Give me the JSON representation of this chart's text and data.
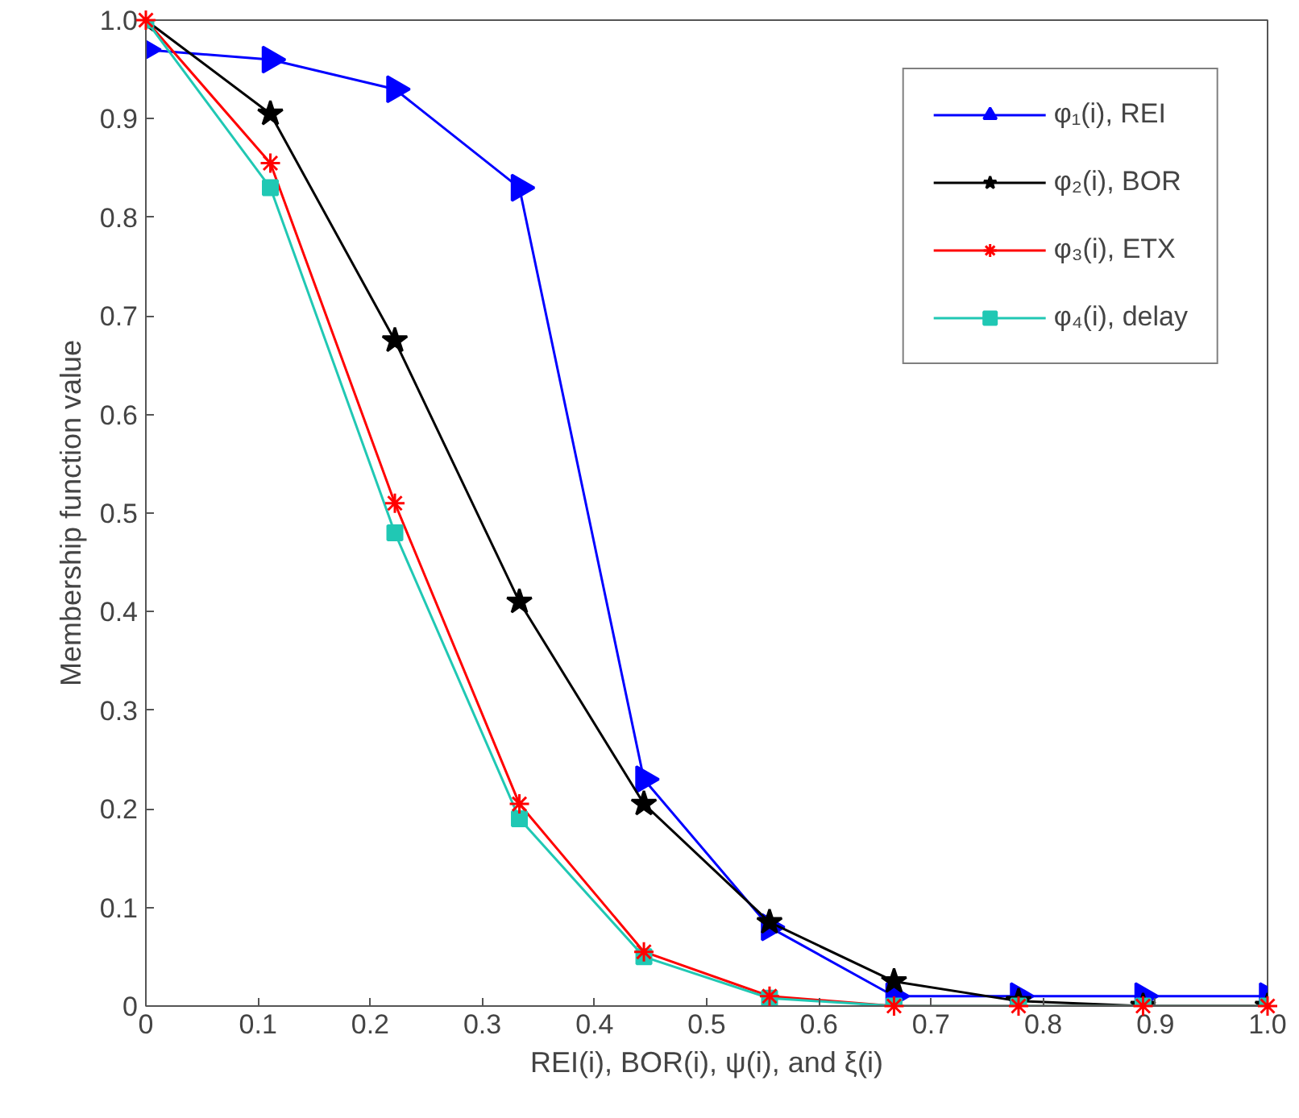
{
  "chart_data": {
    "type": "line",
    "xlabel": "REI(i), BOR(i), ψ(i), and ξ(i)",
    "ylabel": "Membership function value",
    "x": [
      0,
      0.111,
      0.222,
      0.333,
      0.444,
      0.556,
      0.667,
      0.778,
      0.889,
      1.0
    ],
    "series": [
      {
        "name": "φ₁(i), REI",
        "color": "#0000ff",
        "marker": "triangle",
        "values": [
          0.97,
          0.96,
          0.93,
          0.83,
          0.23,
          0.08,
          0.01,
          0.01,
          0.01,
          0.01
        ]
      },
      {
        "name": "φ₂(i), BOR",
        "color": "#000000",
        "marker": "star",
        "values": [
          1.0,
          0.905,
          0.675,
          0.41,
          0.205,
          0.085,
          0.025,
          0.005,
          0.0,
          0.0
        ]
      },
      {
        "name": "φ₃(i), ETX",
        "color": "#ff0000",
        "marker": "cross",
        "values": [
          1.0,
          0.855,
          0.51,
          0.205,
          0.055,
          0.01,
          0.0,
          0.0,
          0.0,
          0.0
        ]
      },
      {
        "name": "φ₄(i), delay",
        "color": "#20c8b4",
        "marker": "square",
        "values": [
          1.0,
          0.83,
          0.48,
          0.19,
          0.05,
          0.008,
          0.0,
          0.0,
          0.0,
          0.0
        ]
      }
    ],
    "xlim": [
      0,
      1.0
    ],
    "ylim": [
      0,
      1.0
    ],
    "xticks": [
      0,
      0.1,
      0.2,
      0.3,
      0.4,
      0.5,
      0.6,
      0.7,
      0.8,
      0.9,
      {
        "value": 1.0,
        "label": "1.0"
      }
    ],
    "yticks": [
      0,
      0.1,
      0.2,
      0.3,
      0.4,
      0.5,
      0.6,
      0.7,
      0.8,
      0.9,
      {
        "value": 1.0,
        "label": "1.0"
      }
    ],
    "grid": false,
    "legend": "top right",
    "line_style": "solid"
  }
}
